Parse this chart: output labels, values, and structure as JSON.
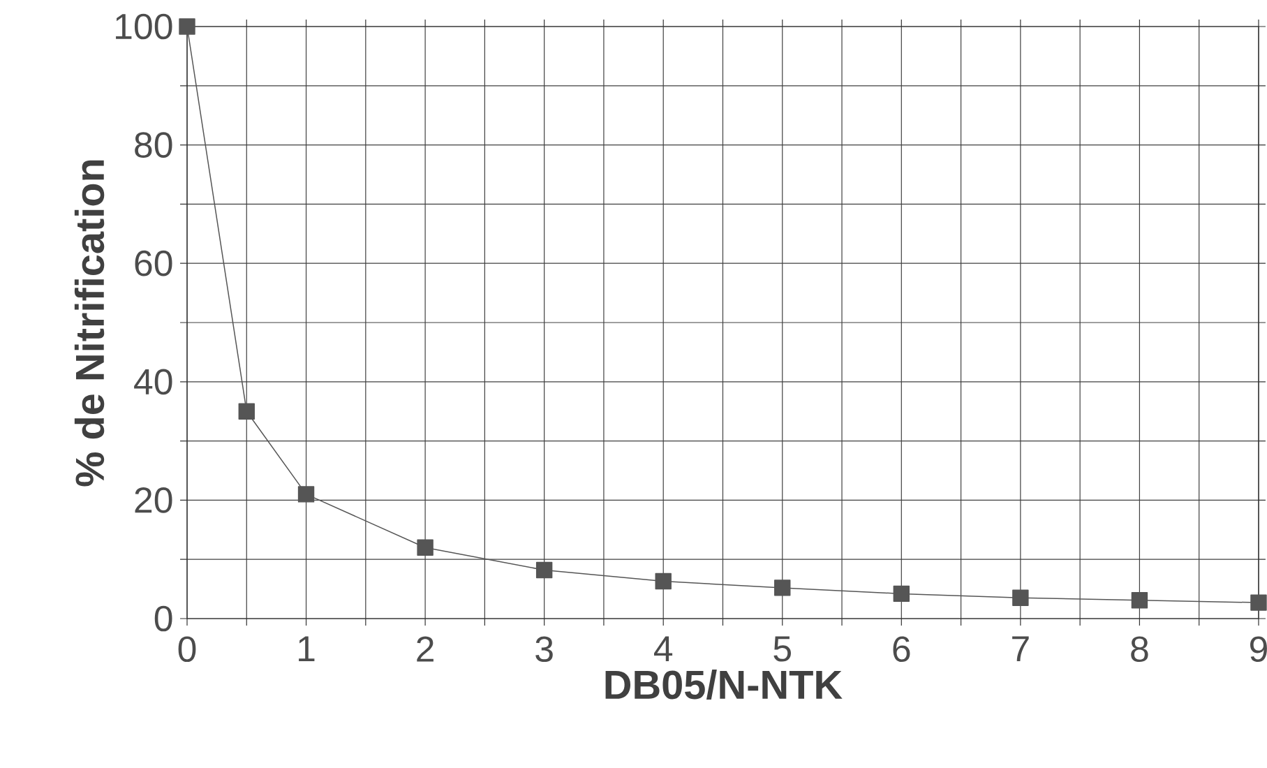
{
  "chart_data": {
    "type": "line",
    "xlabel": "DB05/N-NTK",
    "ylabel": "% de Nitrification",
    "x": [
      0,
      0.5,
      1,
      2,
      3,
      4,
      5,
      6,
      7,
      8,
      9
    ],
    "series": [
      {
        "color": "#555555",
        "values": [
          100,
          35,
          21,
          12,
          8.2,
          6.3,
          5.2,
          4.2,
          3.5,
          3.1,
          2.7
        ]
      }
    ],
    "xlim": [
      0,
      9
    ],
    "ylim": [
      0,
      100
    ],
    "xticks": [
      0,
      {
        "value": 0.5,
        "label": null
      },
      1,
      {
        "value": 1.5,
        "label": null
      },
      2,
      {
        "value": 2.5,
        "label": null
      },
      3,
      {
        "value": 3.5,
        "label": null
      },
      4,
      {
        "value": 4.5,
        "label": null
      },
      5,
      {
        "value": 5.5,
        "label": null
      },
      6,
      {
        "value": 6.5,
        "label": null
      },
      7,
      {
        "value": 7.5,
        "label": null
      },
      8,
      {
        "value": 8.5,
        "label": null
      },
      9
    ],
    "yticks": [
      0,
      {
        "value": 10,
        "label": null
      },
      20,
      {
        "value": 30,
        "label": null
      },
      40,
      {
        "value": 50,
        "label": null
      },
      60,
      {
        "value": 70,
        "label": null
      },
      80,
      {
        "value": 90,
        "label": null
      },
      100
    ],
    "grid": true,
    "marker": "square",
    "line_style": "solid"
  }
}
